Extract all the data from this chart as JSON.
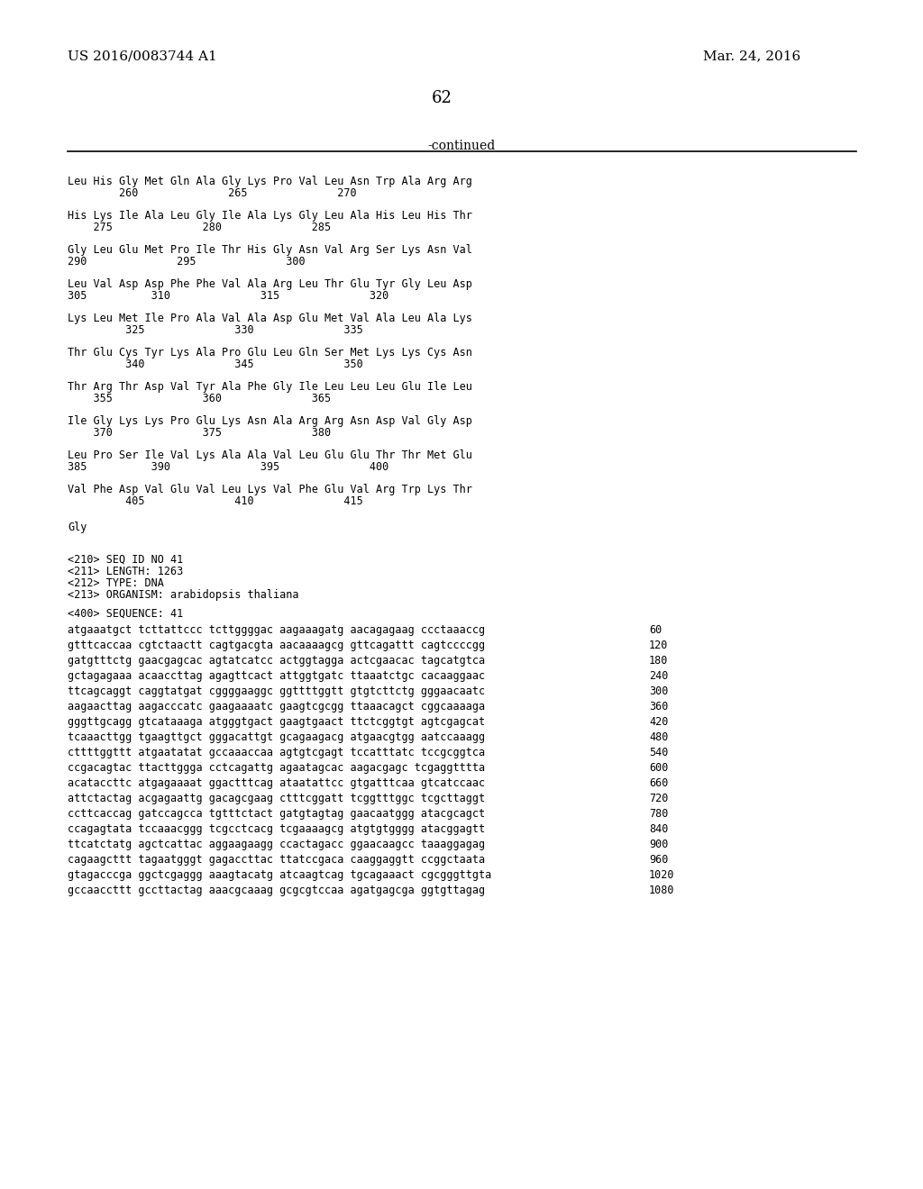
{
  "page_number": "62",
  "patent_number": "US 2016/0083744 A1",
  "patent_date": "Mar. 24, 2016",
  "continued_label": "-continued",
  "background_color": "#ffffff",
  "text_color": "#000000",
  "protein_lines": [
    [
      "Leu His Gly Met Gln Ala Gly Lys Pro Val Leu Asn Trp Ala Arg Arg",
      "        260              265              270"
    ],
    [
      "His Lys Ile Ala Leu Gly Ile Ala Lys Gly Leu Ala His Leu His Thr",
      "    275              280              285"
    ],
    [
      "Gly Leu Glu Met Pro Ile Thr His Gly Asn Val Arg Ser Lys Asn Val",
      "290              295              300"
    ],
    [
      "Leu Val Asp Asp Phe Phe Val Ala Arg Leu Thr Glu Tyr Gly Leu Asp",
      "305          310              315              320"
    ],
    [
      "Lys Leu Met Ile Pro Ala Val Ala Asp Glu Met Val Ala Leu Ala Lys",
      "         325              330              335"
    ],
    [
      "Thr Glu Cys Tyr Lys Ala Pro Glu Leu Gln Ser Met Lys Lys Cys Asn",
      "         340              345              350"
    ],
    [
      "Thr Arg Thr Asp Val Tyr Ala Phe Gly Ile Leu Leu Leu Glu Ile Leu",
      "    355              360              365"
    ],
    [
      "Ile Gly Lys Lys Pro Glu Lys Asn Ala Arg Arg Asn Asp Val Gly Asp",
      "    370              375              380"
    ],
    [
      "Leu Pro Ser Ile Val Lys Ala Ala Val Leu Glu Glu Thr Thr Met Glu",
      "385          390              395              400"
    ],
    [
      "Val Phe Asp Val Glu Val Leu Lys Val Phe Glu Val Arg Trp Lys Thr",
      "         405              410              415"
    ]
  ],
  "gly_line": "Gly",
  "seq_info": [
    "<210> SEQ ID NO 41",
    "<211> LENGTH: 1263",
    "<212> TYPE: DNA",
    "<213> ORGANISM: arabidopsis thaliana"
  ],
  "seq_label": "<400> SEQUENCE: 41",
  "dna_lines": [
    [
      "atgaaatgct tcttattccc tcttggggac aagaaagatg aacagagaag ccctaaaccg",
      "60"
    ],
    [
      "gtttcaccaa cgtctaactt cagtgacgta aacaaaagcg gttcagattt cagtccccgg",
      "120"
    ],
    [
      "gatgtttctg gaacgagcac agtatcatcc actggtagga actcgaacac tagcatgtca",
      "180"
    ],
    [
      "gctagagaaa acaaccttag agagttcact attggtgatc ttaaatctgc cacaaggaac",
      "240"
    ],
    [
      "ttcagcaggt caggtatgat cggggaaggc ggttttggtt gtgtcttctg gggaacaatc",
      "300"
    ],
    [
      "aagaacttag aagacccatc gaagaaaatc gaagtcgcgg ttaaacagct cggcaaaaga",
      "360"
    ],
    [
      "gggttgcagg gtcataaaga atgggtgact gaagtgaact ttctcggtgt agtcgagcat",
      "420"
    ],
    [
      "tcaaacttgg tgaagttgct gggacattgt gcagaagacg atgaacgtgg aatccaaagg",
      "480"
    ],
    [
      "cttttggttt atgaatatat gccaaaccaa agtgtcgagt tccatttatc tccgcggtca",
      "540"
    ],
    [
      "ccgacagtac ttacttggga cctcagattg agaatagcac aagacgagc tcgaggtttta",
      "600"
    ],
    [
      "acataccttc atgagaaaat ggactttcag ataatattcc gtgatttcaa gtcatccaac",
      "660"
    ],
    [
      "attctactag acgagaattg gacagcgaag ctttcggatt tcggtttggc tcgcttaggt",
      "720"
    ],
    [
      "ccttcaccag gatccagcca tgtttctact gatgtagtag gaacaatggg atacgcagct",
      "780"
    ],
    [
      "ccagagtata tccaaacggg tcgcctcacg tcgaaaagcg atgtgtgggg atacggagtt",
      "840"
    ],
    [
      "ttcatctatg agctcattac aggaagaagg ccactagacc ggaacaagcc taaaggagag",
      "900"
    ],
    [
      "cagaagcttt tagaatgggt gagaccttac ttatccgaca caaggaggtt ccggctaata",
      "960"
    ],
    [
      "gtagacccga ggctcgaggg aaagtacatg atcaagtcag tgcagaaact cgcgggttgta",
      "1020"
    ],
    [
      "gccaaccttt gccttactag aaacgcaaag gcgcgtccaa agatgagcga ggtgttagag",
      "1080"
    ]
  ]
}
